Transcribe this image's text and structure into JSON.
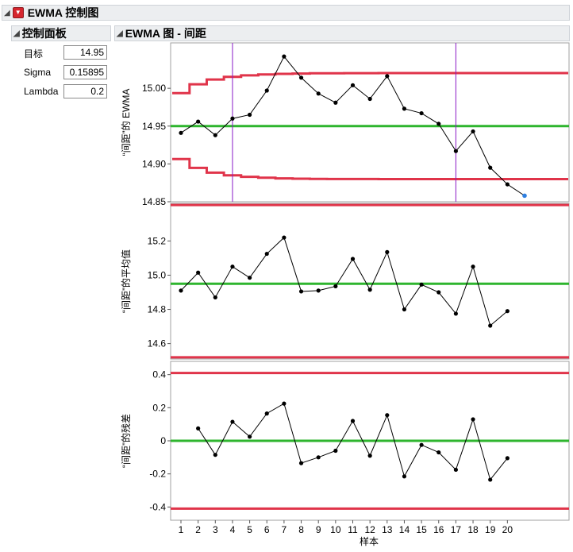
{
  "window": {
    "title": "EWMA 控制图"
  },
  "control_panel": {
    "title": "控制面板",
    "params": [
      {
        "label": "目标",
        "value": "14.95"
      },
      {
        "label": "Sigma",
        "value": "0.15895"
      },
      {
        "label": "Lambda",
        "value": "0.2"
      }
    ]
  },
  "chart_panel": {
    "title": "EWMA 图 - 间距"
  },
  "colors": {
    "limits": "#e0344a",
    "center": "#2eb52e",
    "data": "#000000",
    "markers": "#8a1ac7",
    "forecast": "#2e7fe0"
  },
  "chart_data": [
    {
      "type": "line",
      "ylabel": "“间距”的 EWMA",
      "ylim": [
        14.85,
        15.06
      ],
      "yticks": [
        "15.00",
        "14.95",
        "14.90",
        "14.85"
      ],
      "ytick_values": [
        15.0,
        14.95,
        14.9,
        14.85
      ],
      "center": 14.95,
      "ucl": [
        14.9936,
        15.0053,
        15.0116,
        15.0151,
        15.0171,
        15.0183,
        15.0191,
        15.0195,
        15.0198,
        15.0199,
        15.02,
        15.02,
        15.0201,
        15.0201,
        15.0201,
        15.0201,
        15.0201,
        15.0201,
        15.0201,
        15.0201,
        15.0201
      ],
      "lcl": [
        14.9064,
        14.8947,
        14.8884,
        14.8849,
        14.8829,
        14.8817,
        14.8809,
        14.8805,
        14.8802,
        14.8801,
        14.88,
        14.88,
        14.8799,
        14.8799,
        14.8799,
        14.8799,
        14.8799,
        14.8799,
        14.8799,
        14.8799,
        14.8799
      ],
      "x": [
        1,
        2,
        3,
        4,
        5,
        6,
        7,
        8,
        9,
        10,
        11,
        12,
        13,
        14,
        15,
        16,
        17,
        18,
        19,
        20
      ],
      "values": [
        14.941,
        14.956,
        14.938,
        14.96,
        14.965,
        14.997,
        15.042,
        15.014,
        14.993,
        14.981,
        15.004,
        14.986,
        15.016,
        14.973,
        14.967,
        14.953,
        14.917,
        14.943,
        14.895,
        14.873
      ],
      "forecast": {
        "x": 21,
        "value": 14.858
      },
      "markers_x": [
        4,
        17
      ]
    },
    {
      "type": "line",
      "ylabel": "“间距”的平均值",
      "ylim": [
        14.51,
        15.42
      ],
      "yticks": [
        "15.2",
        "15.0",
        "14.8",
        "14.6"
      ],
      "ytick_values": [
        15.2,
        15.0,
        14.8,
        14.6
      ],
      "center": 14.95,
      "ucl": 15.41,
      "lcl": 14.52,
      "x": [
        1,
        2,
        3,
        4,
        5,
        6,
        7,
        8,
        9,
        10,
        11,
        12,
        13,
        14,
        15,
        16,
        17,
        18,
        19,
        20
      ],
      "values": [
        14.91,
        15.015,
        14.87,
        15.05,
        14.985,
        15.125,
        15.22,
        14.905,
        14.91,
        14.935,
        15.095,
        14.915,
        15.135,
        14.8,
        14.945,
        14.9,
        14.775,
        15.05,
        14.705,
        14.79
      ]
    },
    {
      "type": "line",
      "ylabel": "“间距”的残差",
      "xlabel": "样本",
      "ylim": [
        -0.48,
        0.48
      ],
      "yticks": [
        "0.4",
        "0.2",
        "0",
        "-0.2",
        "-0.4"
      ],
      "ytick_values": [
        0.4,
        0.2,
        0,
        -0.2,
        -0.4
      ],
      "center": 0,
      "ucl": 0.41,
      "lcl": -0.41,
      "x": [
        2,
        3,
        4,
        5,
        6,
        7,
        8,
        9,
        10,
        11,
        12,
        13,
        14,
        15,
        16,
        17,
        18,
        19,
        20
      ],
      "values": [
        0.075,
        -0.085,
        0.115,
        0.025,
        0.165,
        0.225,
        -0.135,
        -0.1,
        -0.06,
        0.12,
        -0.09,
        0.155,
        -0.215,
        -0.025,
        -0.07,
        -0.175,
        0.13,
        -0.235,
        -0.105
      ],
      "xticks": [
        "1",
        "2",
        "3",
        "4",
        "5",
        "6",
        "7",
        "8",
        "9",
        "10",
        "11",
        "12",
        "13",
        "14",
        "15",
        "16",
        "17",
        "18",
        "19",
        "20"
      ]
    }
  ]
}
